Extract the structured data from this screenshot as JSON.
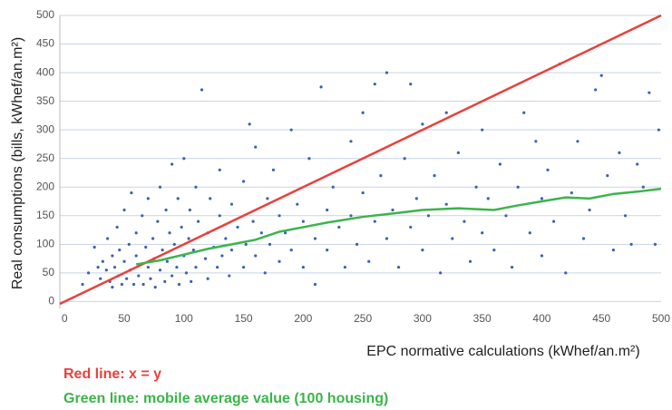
{
  "chart_data": {
    "type": "scatter",
    "y_label": "Real consumptions (bills, kWhef/an.m²)",
    "x_label": "EPC normative calculations (kWhef/an.m²)",
    "annotations": [
      {
        "text": "Red line: x = y",
        "color": "#e8413c"
      },
      {
        "text": "Green line:  mobile average value (100 housing)",
        "color": "#3cb44b"
      }
    ],
    "xlim": [
      -4,
      500
    ],
    "ylim": [
      -12,
      500
    ],
    "xticks": [
      0,
      50,
      100,
      150,
      200,
      250,
      300,
      350,
      400,
      450,
      500
    ],
    "yticks": [
      0,
      50,
      100,
      150,
      200,
      250,
      300,
      350,
      400,
      450,
      500
    ],
    "grid": true,
    "series": [
      {
        "type": "scatter",
        "color": "#3a63b0",
        "x": [
          15,
          20,
          25,
          28,
          30,
          32,
          35,
          36,
          38,
          40,
          40,
          42,
          44,
          45,
          46,
          48,
          50,
          50,
          52,
          54,
          55,
          56,
          58,
          60,
          60,
          62,
          64,
          65,
          66,
          68,
          70,
          70,
          72,
          74,
          75,
          76,
          78,
          80,
          80,
          82,
          84,
          85,
          86,
          88,
          90,
          90,
          92,
          94,
          95,
          96,
          98,
          100,
          100,
          102,
          104,
          105,
          106,
          108,
          110,
          110,
          112,
          115,
          118,
          120,
          120,
          122,
          125,
          128,
          130,
          130,
          132,
          135,
          138,
          140,
          140,
          145,
          150,
          150,
          152,
          155,
          158,
          160,
          160,
          165,
          168,
          170,
          172,
          175,
          180,
          180,
          185,
          190,
          190,
          195,
          200,
          200,
          205,
          210,
          210,
          215,
          220,
          220,
          225,
          230,
          235,
          240,
          240,
          245,
          250,
          250,
          255,
          260,
          260,
          265,
          270,
          270,
          275,
          280,
          285,
          290,
          290,
          295,
          300,
          300,
          305,
          310,
          315,
          320,
          320,
          325,
          330,
          335,
          340,
          345,
          350,
          350,
          355,
          360,
          365,
          370,
          375,
          380,
          385,
          390,
          395,
          400,
          400,
          405,
          410,
          415,
          420,
          425,
          430,
          435,
          440,
          445,
          450,
          455,
          460,
          465,
          470,
          475,
          480,
          485,
          490,
          495,
          498
        ],
        "values": [
          30,
          50,
          95,
          60,
          40,
          70,
          55,
          110,
          35,
          80,
          25,
          60,
          130,
          45,
          90,
          30,
          70,
          160,
          40,
          100,
          55,
          190,
          30,
          80,
          120,
          45,
          65,
          150,
          30,
          95,
          60,
          180,
          40,
          110,
          75,
          25,
          140,
          55,
          200,
          90,
          35,
          160,
          70,
          120,
          45,
          240,
          100,
          60,
          180,
          30,
          130,
          80,
          250,
          50,
          110,
          160,
          35,
          90,
          200,
          60,
          140,
          370,
          75,
          120,
          40,
          180,
          95,
          60,
          150,
          230,
          80,
          110,
          45,
          170,
          90,
          130,
          60,
          210,
          100,
          310,
          140,
          80,
          270,
          120,
          50,
          180,
          100,
          230,
          70,
          150,
          120,
          300,
          90,
          170,
          60,
          140,
          250,
          110,
          30,
          375,
          160,
          90,
          200,
          130,
          60,
          280,
          150,
          100,
          330,
          190,
          70,
          140,
          380,
          220,
          110,
          400,
          160,
          60,
          250,
          130,
          380,
          180,
          90,
          310,
          150,
          220,
          50,
          170,
          330,
          110,
          260,
          140,
          70,
          200,
          120,
          300,
          180,
          90,
          240,
          150,
          60,
          200,
          330,
          120,
          280,
          180,
          80,
          230,
          140,
          415,
          50,
          190,
          280,
          110,
          160,
          370,
          395,
          220,
          90,
          260,
          150,
          100,
          240,
          200,
          365,
          100,
          300
        ]
      },
      {
        "type": "line",
        "color": "#e8413c",
        "x": [
          -4,
          500
        ],
        "values": [
          -4,
          500
        ]
      },
      {
        "type": "line",
        "color": "#3cb44b",
        "x": [
          60,
          80,
          100,
          120,
          140,
          160,
          180,
          200,
          220,
          250,
          280,
          300,
          330,
          360,
          380,
          400,
          420,
          440,
          460,
          480,
          500
        ],
        "values": [
          65,
          72,
          82,
          92,
          100,
          108,
          122,
          130,
          138,
          148,
          155,
          160,
          163,
          160,
          168,
          175,
          182,
          180,
          188,
          192,
          197
        ]
      }
    ]
  }
}
